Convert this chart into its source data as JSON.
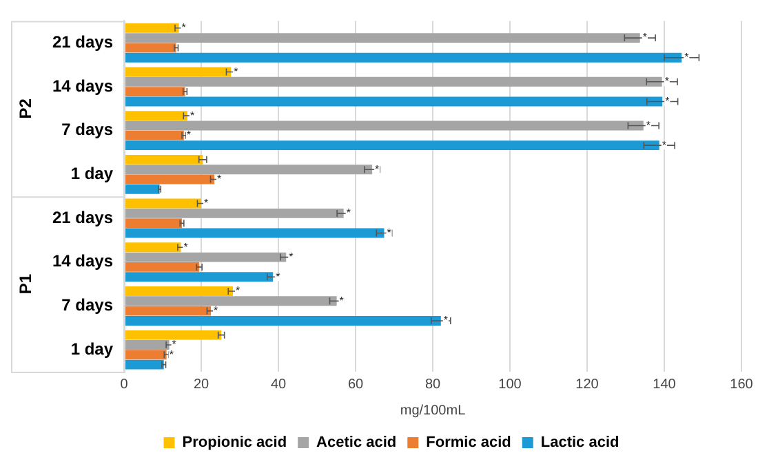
{
  "chart_data": {
    "type": "bar",
    "orientation": "horizontal",
    "xlabel": "mg/100mL",
    "categories": [
      "21 days",
      "14 days",
      "7 days",
      "1 day",
      "21 days",
      "14 days",
      "7 days",
      "1 day"
    ],
    "annotations": [
      "P2",
      "P1"
    ],
    "series": [
      {
        "name": "Propionic acid",
        "color": "#ffc000",
        "values": [
          14.2,
          27.7,
          16.4,
          20.4,
          20,
          14.7,
          28.2,
          25.2
        ],
        "errors": [
          1,
          1.2,
          1,
          1,
          1,
          0.8,
          1.2,
          0.8
        ],
        "value_labels": [
          "*",
          "*",
          "*",
          null,
          "*",
          "*",
          "*",
          null
        ]
      },
      {
        "name": "Acetic acid",
        "color": "#a5a5a5",
        "values": [
          133.7,
          139.4,
          134.6,
          64.3,
          56.9,
          42,
          55.1,
          11.7
        ],
        "errors": [
          4,
          4,
          4,
          2,
          1.7,
          1.5,
          1.8,
          0.8
        ],
        "value_labels": [
          "*",
          "*",
          "*",
          "*",
          "*",
          "*",
          "*",
          "*"
        ]
      },
      {
        "name": "Formic acid",
        "color": "#ed7d31",
        "values": [
          13.5,
          15.8,
          15.5,
          23.4,
          15,
          19.5,
          22.5,
          11
        ],
        "errors": [
          0.5,
          0.5,
          0.5,
          1,
          0.5,
          0.7,
          1,
          0.6
        ],
        "value_labels": [
          null,
          null,
          "*",
          "*",
          null,
          null,
          "*",
          "*"
        ]
      },
      {
        "name": "Lactic acid",
        "color": "#1b9ad6",
        "values": [
          144.5,
          139.5,
          138.7,
          9.2,
          67.4,
          38.6,
          82.1,
          10.3
        ],
        "errors": [
          4.5,
          4,
          4,
          0.3,
          2,
          1.5,
          2.5,
          0.5
        ],
        "value_labels": [
          "*",
          "*",
          "*",
          null,
          "*",
          "*",
          "*",
          null
        ]
      }
    ],
    "xlim": [
      0,
      160
    ],
    "xticks": [
      0,
      20,
      40,
      60,
      80,
      100,
      120,
      140,
      160
    ],
    "grid": "x",
    "legend": "bottom"
  }
}
